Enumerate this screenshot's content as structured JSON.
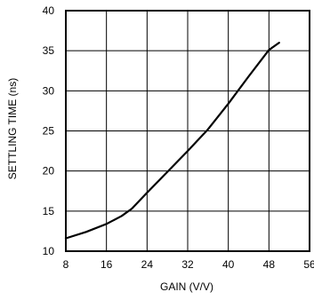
{
  "chart_data": {
    "type": "line",
    "title": "",
    "xlabel": "GAIN (V/V)",
    "ylabel": "SETTLING TIME (ns)",
    "xlim": [
      8,
      56
    ],
    "ylim": [
      10,
      40
    ],
    "x_ticks": [
      8,
      16,
      24,
      32,
      40,
      48,
      56
    ],
    "y_ticks": [
      10,
      15,
      20,
      25,
      30,
      35,
      40
    ],
    "grid": true,
    "legend": "none",
    "line_color": "#000000",
    "series": [
      {
        "x": [
          8,
          12,
          16,
          19,
          21,
          24,
          28,
          32,
          36,
          40,
          44,
          48,
          50
        ],
        "y": [
          11.6,
          12.4,
          13.4,
          14.4,
          15.3,
          17.3,
          19.9,
          22.5,
          25.2,
          28.4,
          31.8,
          35.1,
          36.0
        ]
      }
    ]
  }
}
